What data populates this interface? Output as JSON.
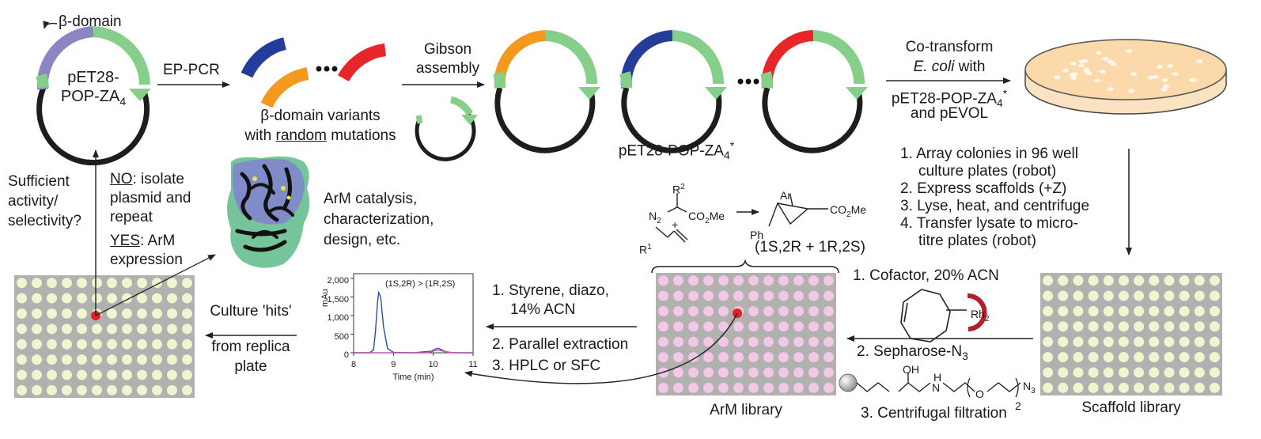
{
  "colors": {
    "beta_domain": "#8a86c4",
    "green": "#86cf8a",
    "orange": "#f39a1e",
    "blue": "#243c9a",
    "red": "#e8252b",
    "plate_grey": "#b1b1b1",
    "well_yellow": "#eef5cf",
    "well_pink": "#f2c8e6",
    "petri_fill": "#fbd9ab",
    "hit_red": "#e01f26",
    "rh_arc": "#b0202a"
  },
  "plasmid": {
    "beta_label": "β-domain",
    "name_line1": "pET28-",
    "name_line2": "POP-ZA",
    "name_sub": "4"
  },
  "step_ep_pcr": "EP-PCR",
  "variants": {
    "line1": "β-domain variants",
    "line2_pre": "with ",
    "line2_u": "random",
    "line2_post": " mutations"
  },
  "gibson": {
    "line1": "Gibson",
    "line2": "assembly"
  },
  "library_plasmids": {
    "label": "pET28-POP-ZA",
    "sub": "4",
    "sup": "*"
  },
  "cotransform": {
    "line1": "Co-transform",
    "line2_em": "E. coli",
    "line2_post": " with",
    "line3": "pET28-POP-ZA",
    "line3_sub": "4",
    "line3_sup": "*",
    "line4": "and pEVOL"
  },
  "array_steps": [
    "1. Array colonies in 96 well",
    "culture plates (robot)",
    "2. Express scaffolds (+Z)",
    "3. Lyse, heat, and centrifuge",
    "4. Transfer lysate to micro-",
    "titre plates (robot)"
  ],
  "scaffold_library": "Scaffold library",
  "arm_library": "ArM library",
  "cofactor_step": "1. Cofactor, 20%  ACN",
  "sepharose_step": "2. Sepharose-N",
  "sepharose_sub": "3",
  "centrifugal_step": "3. Centrifugal filtration",
  "rh_label": "Rh",
  "rh_sub": "2",
  "linker": {
    "oh": "OH",
    "h": "H",
    "n": "N",
    "o": "O",
    "n3": "N",
    "n3_sub": "3",
    "sub2": "2"
  },
  "reaction": {
    "r2": "R",
    "r2_sup": "2",
    "n2": "N",
    "n2_sub": "2",
    "co2me_left": "CO",
    "co2me_left_sub": "2",
    "co2me_left_post": "Me",
    "plus": "+",
    "r1": "R",
    "r1_sup": "1",
    "ar": "Ar",
    "ph": "Ph",
    "co2me_right": "CO",
    "co2me_right_sub": "2",
    "co2me_right_post": "Me",
    "stereo": "(1S,2R + 1R,2S)"
  },
  "screen_steps": {
    "s1_line1": "1. Styrene, diazo,",
    "s1_line2": "14%  ACN",
    "s2": "2. Parallel extraction",
    "s3": "3. HPLC or SFC"
  },
  "chart_data": {
    "type": "line",
    "title": "",
    "annotation": "(1S,2R) > (1R,2S)",
    "xlabel": "Time (min)",
    "ylabel": "mAu",
    "xlim": [
      8,
      11
    ],
    "ylim": [
      0,
      2000
    ],
    "x_ticks": [
      "8",
      "9",
      "10",
      "11"
    ],
    "y_ticks": [
      "0",
      "500",
      "1,000",
      "1,500",
      "2,000"
    ],
    "series": [
      {
        "color": "#2a4fa0",
        "x": [
          8.0,
          8.4,
          8.5,
          8.55,
          8.6,
          8.63,
          8.68,
          8.75,
          8.85,
          9.0,
          9.5,
          9.95,
          10.05,
          10.12,
          10.2,
          10.3,
          10.5,
          11.0
        ],
        "y": [
          0,
          0,
          80,
          600,
          1350,
          1620,
          1500,
          700,
          120,
          10,
          0,
          40,
          100,
          120,
          90,
          30,
          0,
          0
        ]
      },
      {
        "color": "#c45aa8",
        "x": [
          8.0,
          9.8,
          9.95,
          10.05,
          10.12,
          10.2,
          10.35,
          10.6,
          11.0
        ],
        "y": [
          0,
          0,
          25,
          60,
          70,
          55,
          15,
          0,
          0
        ]
      }
    ]
  },
  "culture_hits": {
    "line1": "Culture 'hits'",
    "line2": "from replica",
    "line3": "plate"
  },
  "decision": {
    "q1": "Sufficient",
    "q2": "activity/",
    "q3": "selectivity?",
    "no_word": "NO",
    "no_rest": ": isolate",
    "no_line2": "plasmid and",
    "no_line3": "repeat",
    "yes_word": "YES",
    "yes_rest": ": ArM",
    "yes_line2": "expression"
  },
  "catalysis": {
    "line1": "ArM catalysis,",
    "line2": "characterization,",
    "line3": "design, etc."
  }
}
